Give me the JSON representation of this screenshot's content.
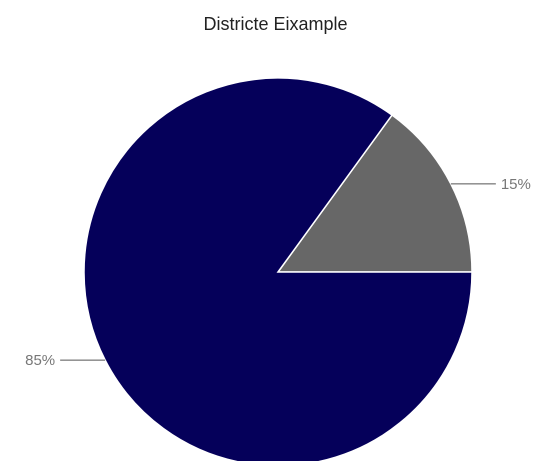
{
  "chart_data": {
    "type": "pie",
    "title": "Districte Eixample",
    "slices": [
      {
        "value": 15,
        "label": "15%",
        "color": "#676767"
      },
      {
        "value": 85,
        "label": "85%",
        "color": "#05005a"
      }
    ],
    "slice_border_color": "#ffffff",
    "label_line_color": "#555555",
    "label_text_color": "#777777"
  }
}
